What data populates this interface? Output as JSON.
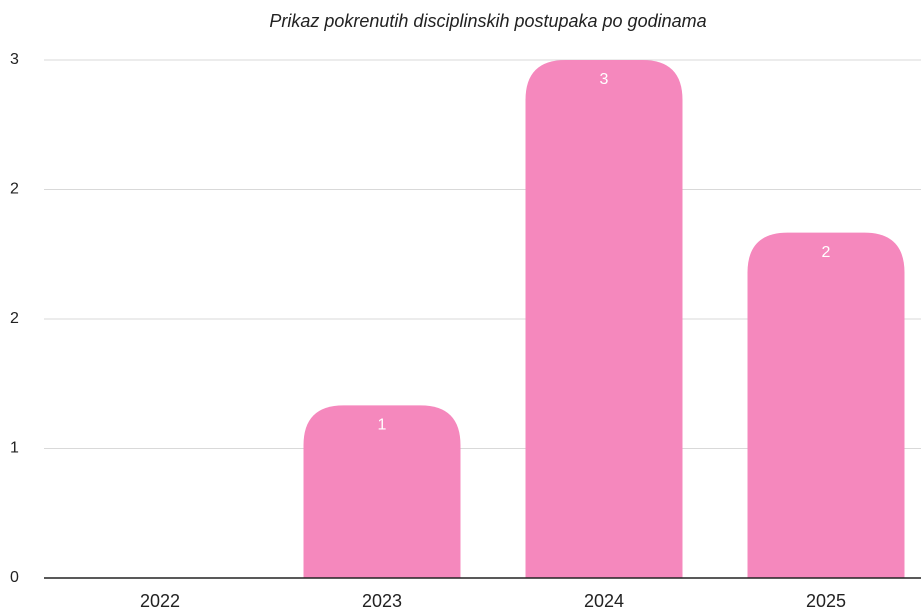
{
  "chart_data": {
    "type": "bar",
    "title": "Prikaz pokrenutih disciplinskih postupaka po godinama",
    "categories": [
      "2022",
      "2023",
      "2024",
      "2025"
    ],
    "values": [
      0,
      1,
      3,
      2
    ],
    "color": "#f588bd",
    "ylim": [
      0,
      3
    ],
    "yticks": [
      0,
      {
        "value": 0.75,
        "label": "1"
      },
      {
        "value": 1.5,
        "label": "2"
      },
      {
        "value": 2.25,
        "label": "2"
      },
      3
    ],
    "grid": true
  }
}
